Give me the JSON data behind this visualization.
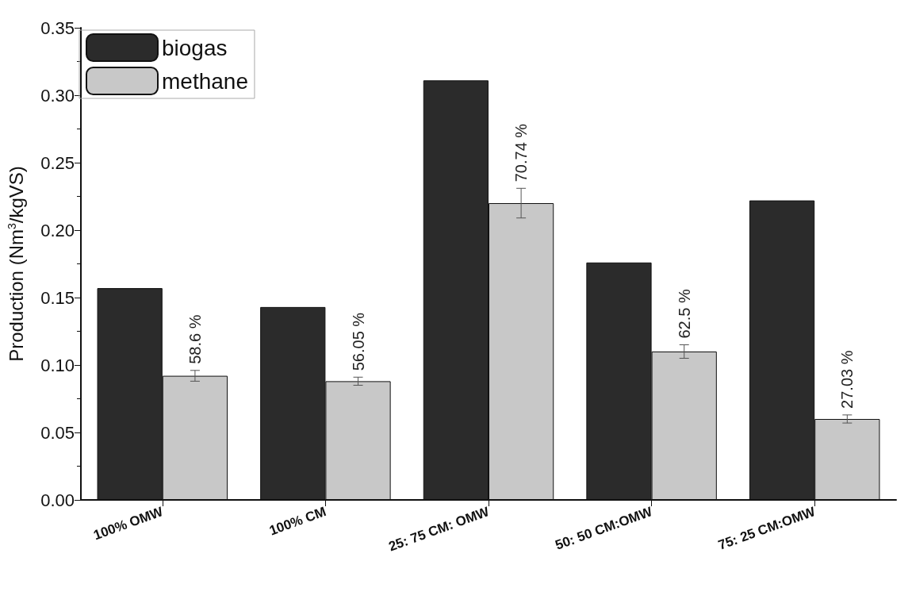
{
  "chart_data": {
    "type": "bar",
    "ylabel": "Production (Nm$^{3}$/kgVS)",
    "categories": [
      "100% OMW",
      "100% CM",
      "25: 75 CM: OMW",
      "50: 50 CM:OMW",
      "75: 25 CM:OMW"
    ],
    "series": [
      {
        "name": "biogas",
        "color": "#2b2b2b",
        "values": [
          0.157,
          0.143,
          0.311,
          0.176,
          0.222
        ]
      },
      {
        "name": "methane",
        "color": "#c8c8c8",
        "values": [
          0.092,
          0.088,
          0.22,
          0.11,
          0.06
        ],
        "errors": [
          0.004,
          0.003,
          0.011,
          0.005,
          0.003
        ]
      }
    ],
    "annotations": [
      {
        "text": "58.6 %",
        "x": "100% OMW",
        "y": 0.092
      },
      {
        "text": "56.05 %",
        "x": "100% CM",
        "y": 0.088
      },
      {
        "text": "70.74 %",
        "x": "25: 75 CM: OMW",
        "y": 0.22
      },
      {
        "text": "62.5 %",
        "x": "50: 50 CM:OMW",
        "y": 0.11
      },
      {
        "text": "27.03 %",
        "x": "75: 25 CM:OMW",
        "y": 0.06
      }
    ],
    "ylim": [
      0,
      0.35
    ],
    "yticks": [
      {
        "value": 0,
        "label": "0.00"
      },
      0.05,
      {
        "value": 0.1,
        "label": "0.10"
      },
      0.15,
      {
        "value": 0.2,
        "label": "0.20"
      },
      0.25,
      {
        "value": 0.3,
        "label": "0.30"
      },
      0.35
    ],
    "grid": false,
    "legend": "top left"
  }
}
